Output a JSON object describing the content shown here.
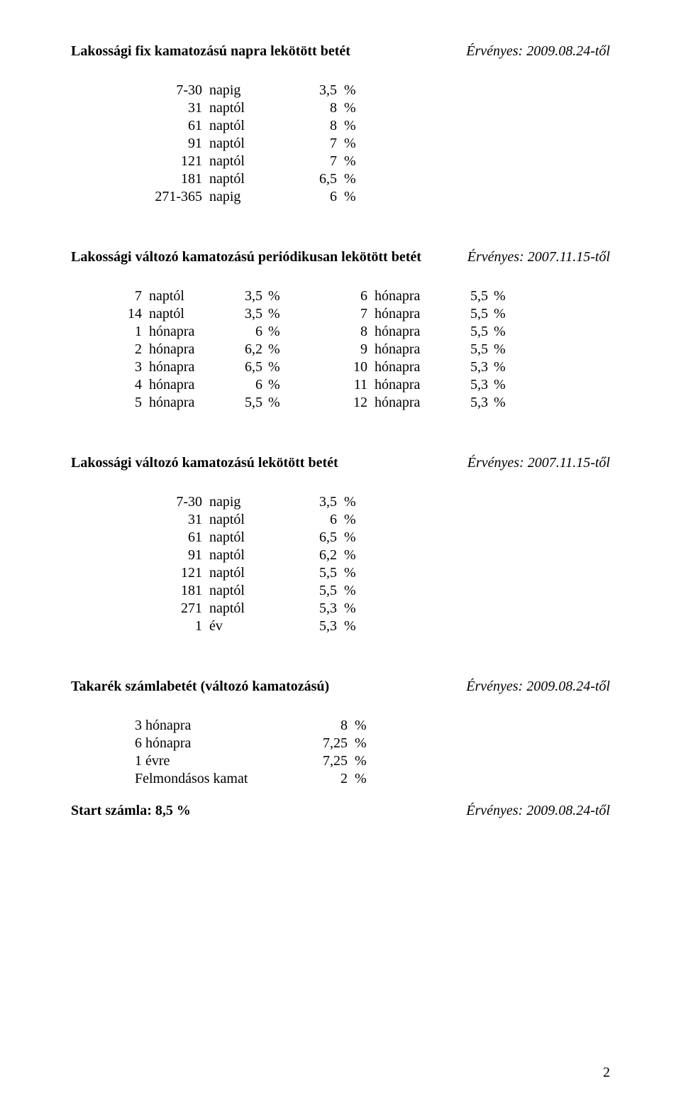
{
  "page_number": "2",
  "percent_symbol": "%",
  "sec1": {
    "title": "Lakossági fix kamatozású napra lekötött betét",
    "validity": "Érvényes: 2009.08.24-től",
    "rows": [
      {
        "qty": "7-30",
        "unit": "napig",
        "val": "3,5"
      },
      {
        "qty": "31",
        "unit": "naptól",
        "val": "8"
      },
      {
        "qty": "61",
        "unit": "naptól",
        "val": "8"
      },
      {
        "qty": "91",
        "unit": "naptól",
        "val": "7"
      },
      {
        "qty": "121",
        "unit": "naptól",
        "val": "7"
      },
      {
        "qty": "181",
        "unit": "naptól",
        "val": "6,5"
      },
      {
        "qty": "271-365",
        "unit": "napig",
        "val": "6"
      }
    ]
  },
  "sec2": {
    "title": "Lakossági változó kamatozású periódikusan lekötött betét",
    "validity": "Érvényes: 2007.11.15-től",
    "rows": [
      {
        "ql": "7",
        "ul": "naptól",
        "vl": "3,5",
        "qr": "6",
        "ur": "hónapra",
        "vr": "5,5"
      },
      {
        "ql": "14",
        "ul": "naptól",
        "vl": "3,5",
        "qr": "7",
        "ur": "hónapra",
        "vr": "5,5"
      },
      {
        "ql": "1",
        "ul": "hónapra",
        "vl": "6",
        "qr": "8",
        "ur": "hónapra",
        "vr": "5,5"
      },
      {
        "ql": "2",
        "ul": "hónapra",
        "vl": "6,2",
        "qr": "9",
        "ur": "hónapra",
        "vr": "5,5"
      },
      {
        "ql": "3",
        "ul": "hónapra",
        "vl": "6,5",
        "qr": "10",
        "ur": "hónapra",
        "vr": "5,3"
      },
      {
        "ql": "4",
        "ul": "hónapra",
        "vl": "6",
        "qr": "11",
        "ur": "hónapra",
        "vr": "5,3"
      },
      {
        "ql": "5",
        "ul": "hónapra",
        "vl": "5,5",
        "qr": "12",
        "ur": "hónapra",
        "vr": "5,3"
      }
    ]
  },
  "sec3": {
    "title": "Lakossági változó kamatozású lekötött betét",
    "validity": "Érvényes: 2007.11.15-től",
    "rows": [
      {
        "qty": "7-30",
        "unit": "napig",
        "val": "3,5"
      },
      {
        "qty": "31",
        "unit": "naptól",
        "val": "6"
      },
      {
        "qty": "61",
        "unit": "naptól",
        "val": "6,5"
      },
      {
        "qty": "91",
        "unit": "naptól",
        "val": "6,2"
      },
      {
        "qty": "121",
        "unit": "naptól",
        "val": "5,5"
      },
      {
        "qty": "181",
        "unit": "naptól",
        "val": "5,5"
      },
      {
        "qty": "271",
        "unit": "naptól",
        "val": "5,3"
      },
      {
        "qty": "1",
        "unit": "év",
        "val": "5,3"
      }
    ]
  },
  "sec4": {
    "title": "Takarék számlabetét (változó kamatozású)",
    "validity": "Érvényes: 2009.08.24-től",
    "rows": [
      {
        "label": "3 hónapra",
        "val": "8"
      },
      {
        "label": "6 hónapra",
        "val": "7,25"
      },
      {
        "label": "1 évre",
        "val": "7,25"
      },
      {
        "label": "Felmondásos kamat",
        "val": "2"
      }
    ]
  },
  "sec5": {
    "title": "Start számla: 8,5 %",
    "validity": "Érvényes: 2009.08.24-től"
  }
}
